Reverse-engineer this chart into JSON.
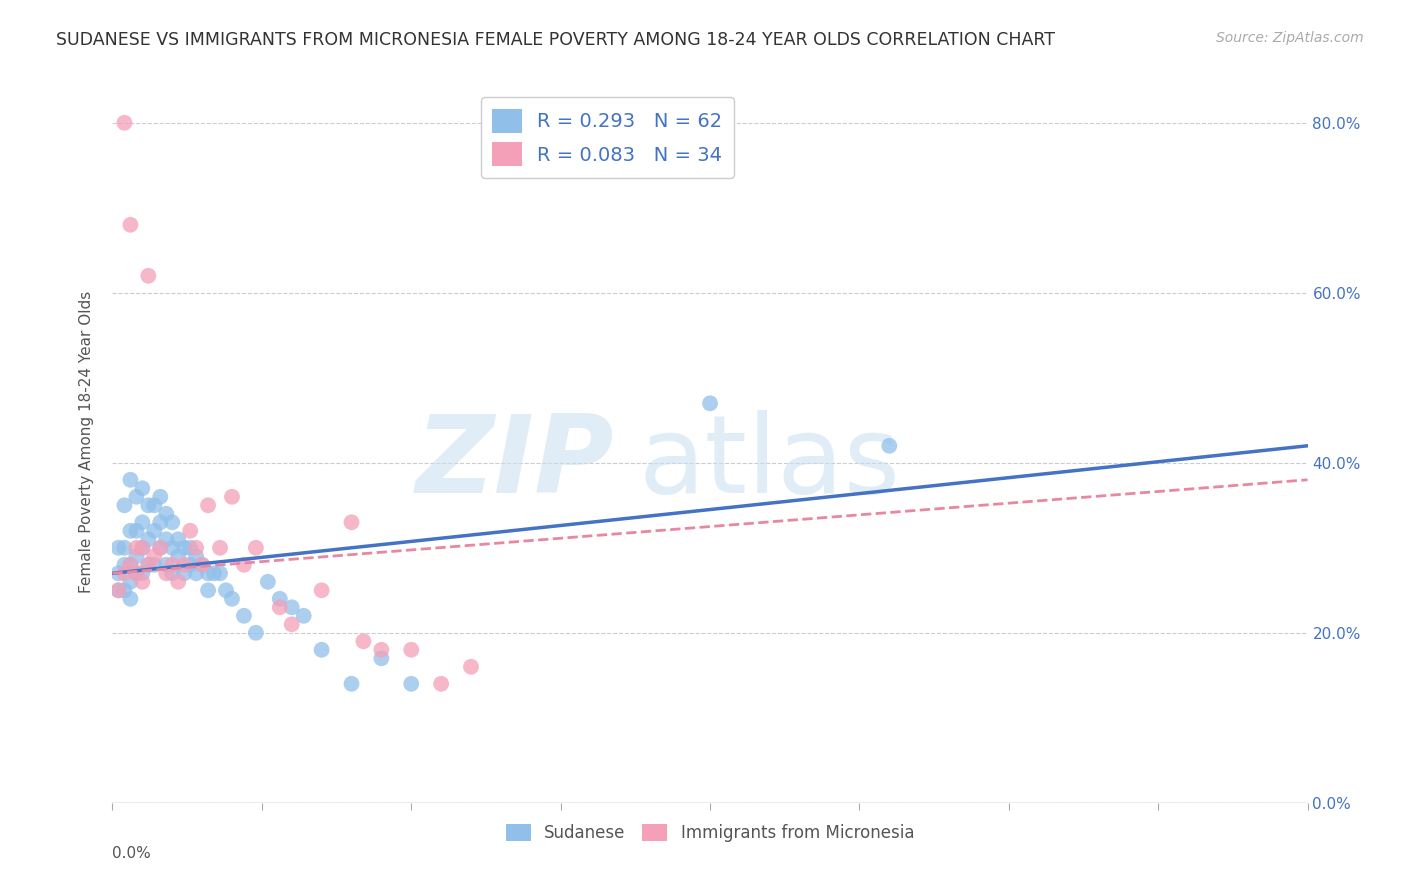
{
  "title": "SUDANESE VS IMMIGRANTS FROM MICRONESIA FEMALE POVERTY AMONG 18-24 YEAR OLDS CORRELATION CHART",
  "source": "Source: ZipAtlas.com",
  "ylabel": "Female Poverty Among 18-24 Year Olds",
  "xlim": [
    0.0,
    0.2
  ],
  "ylim": [
    0.0,
    0.85
  ],
  "series1_color": "#90c0ea",
  "series2_color": "#f4a0b8",
  "series1_label": "Sudanese",
  "series2_label": "Immigrants from Micronesia",
  "series1_R": 0.293,
  "series1_N": 62,
  "series2_R": 0.083,
  "series2_N": 34,
  "series1_line_color": "#4472c4",
  "series2_line_color": "#e888a0",
  "background_color": "#ffffff",
  "grid_color": "#cccccc",
  "series1_x": [
    0.001,
    0.001,
    0.001,
    0.002,
    0.002,
    0.002,
    0.002,
    0.003,
    0.003,
    0.003,
    0.003,
    0.003,
    0.004,
    0.004,
    0.004,
    0.004,
    0.005,
    0.005,
    0.005,
    0.005,
    0.006,
    0.006,
    0.006,
    0.007,
    0.007,
    0.007,
    0.008,
    0.008,
    0.008,
    0.009,
    0.009,
    0.009,
    0.01,
    0.01,
    0.01,
    0.011,
    0.011,
    0.012,
    0.012,
    0.013,
    0.013,
    0.014,
    0.014,
    0.015,
    0.016,
    0.016,
    0.017,
    0.018,
    0.019,
    0.02,
    0.022,
    0.024,
    0.026,
    0.028,
    0.03,
    0.032,
    0.035,
    0.04,
    0.045,
    0.05,
    0.1,
    0.13
  ],
  "series1_y": [
    0.27,
    0.3,
    0.25,
    0.35,
    0.3,
    0.28,
    0.25,
    0.38,
    0.32,
    0.28,
    0.26,
    0.24,
    0.36,
    0.32,
    0.29,
    0.27,
    0.37,
    0.33,
    0.3,
    0.27,
    0.35,
    0.31,
    0.28,
    0.35,
    0.32,
    0.28,
    0.36,
    0.33,
    0.3,
    0.34,
    0.31,
    0.28,
    0.33,
    0.3,
    0.27,
    0.31,
    0.29,
    0.3,
    0.27,
    0.3,
    0.28,
    0.29,
    0.27,
    0.28,
    0.27,
    0.25,
    0.27,
    0.27,
    0.25,
    0.24,
    0.22,
    0.2,
    0.26,
    0.24,
    0.23,
    0.22,
    0.18,
    0.14,
    0.17,
    0.14,
    0.47,
    0.42
  ],
  "series2_x": [
    0.001,
    0.002,
    0.002,
    0.003,
    0.003,
    0.004,
    0.004,
    0.005,
    0.005,
    0.006,
    0.006,
    0.007,
    0.008,
    0.009,
    0.01,
    0.011,
    0.012,
    0.013,
    0.014,
    0.015,
    0.016,
    0.018,
    0.02,
    0.022,
    0.024,
    0.028,
    0.03,
    0.035,
    0.04,
    0.042,
    0.045,
    0.05,
    0.055,
    0.06
  ],
  "series2_y": [
    0.25,
    0.8,
    0.27,
    0.28,
    0.68,
    0.3,
    0.27,
    0.26,
    0.3,
    0.28,
    0.62,
    0.29,
    0.3,
    0.27,
    0.28,
    0.26,
    0.28,
    0.32,
    0.3,
    0.28,
    0.35,
    0.3,
    0.36,
    0.28,
    0.3,
    0.23,
    0.21,
    0.25,
    0.33,
    0.19,
    0.18,
    0.18,
    0.14,
    0.16
  ],
  "line1_x0": 0.0,
  "line1_y0": 0.27,
  "line1_x1": 0.2,
  "line1_y1": 0.42,
  "line2_x0": 0.0,
  "line2_y0": 0.27,
  "line2_x1": 0.2,
  "line2_y1": 0.38
}
